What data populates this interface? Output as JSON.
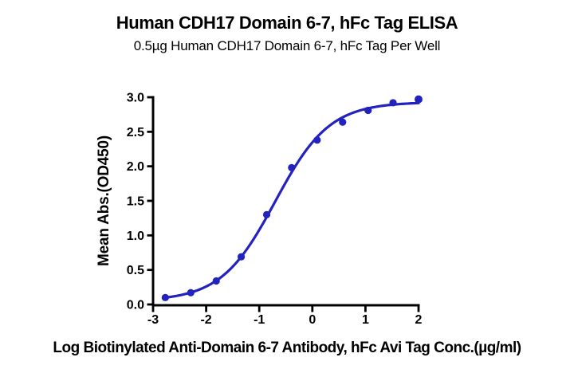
{
  "chart_data": {
    "type": "scatter",
    "title": "Human CDH17 Domain 6-7, hFc Tag ELISA",
    "subtitle": "0.5µg Human CDH17 Domain 6-7, hFc Tag Per Well",
    "xlabel": "Log Biotinylated Anti-Domain 6-7 Antibody, hFc Avi Tag Conc.(µg/ml)",
    "ylabel": "Mean Abs.(OD450)",
    "xlim": [
      -3,
      2
    ],
    "ylim": [
      0,
      3
    ],
    "x_ticks": [
      -3,
      -2,
      -1,
      0,
      1,
      2
    ],
    "x_tick_labels": [
      "-3",
      "-2",
      "-1",
      "0",
      "1",
      "2"
    ],
    "y_ticks": [
      0,
      0.5,
      1,
      1.5,
      2,
      2.5,
      3
    ],
    "y_tick_labels": [
      "0.0",
      "0.5",
      "1.0",
      "1.5",
      "2.0",
      "2.5",
      "3.0"
    ],
    "grid": false,
    "legend": "none",
    "series": [
      {
        "name": "Biotinylated Anti-Domain 6-7 Antibody, hFc Avi Tag",
        "x": [
          -2.77,
          -2.29,
          -1.81,
          -1.34,
          -0.86,
          -0.39,
          0.09,
          0.57,
          1.05,
          1.52,
          2.0
        ],
        "y": [
          0.1,
          0.17,
          0.34,
          0.69,
          1.3,
          1.98,
          2.38,
          2.64,
          2.81,
          2.92,
          2.97
        ]
      }
    ],
    "fit_curve": {
      "model": "4PL sigmoid",
      "bottom": 0.05,
      "top": 2.93,
      "logEC50": -0.7,
      "hill_slope": 0.85,
      "x_start": -2.77,
      "x_end": 2.0
    },
    "colors": {
      "series": "#2222C0",
      "axis": "#000000",
      "text": "#000000"
    }
  }
}
